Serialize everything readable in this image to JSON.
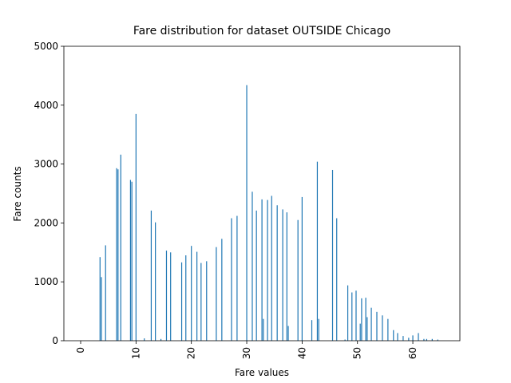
{
  "chart_data": {
    "type": "bar",
    "title": "Fare distribution for dataset OUTSIDE Chicago",
    "xlabel": "Fare values",
    "ylabel": "Fare counts",
    "color": "#1f77b4",
    "x": [
      3.5,
      3.75,
      4.5,
      6.5,
      6.75,
      7.25,
      9.0,
      9.25,
      10.0,
      11.5,
      12.75,
      13.5,
      14.5,
      15.5,
      16.25,
      18.25,
      19.0,
      20.0,
      21.0,
      21.75,
      22.75,
      24.5,
      25.5,
      27.25,
      28.25,
      30.0,
      31.0,
      31.75,
      32.75,
      33.0,
      33.75,
      34.5,
      35.5,
      36.5,
      37.25,
      37.5,
      39.25,
      40.0,
      41.75,
      42.75,
      43.0,
      45.5,
      46.25,
      47.75,
      48.25,
      49.0,
      49.75,
      50.5,
      50.75,
      51.5,
      51.75,
      52.5,
      53.5,
      54.5,
      55.5,
      56.5,
      57.25,
      58.25,
      59.25,
      60.0,
      61.0,
      62.0,
      62.5,
      63.5,
      64.5
    ],
    "values": [
      1420,
      1080,
      1620,
      2930,
      2910,
      3160,
      2730,
      2700,
      3850,
      40,
      2210,
      2010,
      30,
      1530,
      1500,
      1330,
      1450,
      1610,
      1510,
      1320,
      1350,
      1590,
      1730,
      2080,
      2120,
      4340,
      2530,
      2210,
      2400,
      370,
      2390,
      2460,
      2300,
      2230,
      2180,
      250,
      2050,
      2440,
      350,
      3040,
      370,
      2900,
      2080,
      20,
      940,
      820,
      850,
      290,
      720,
      730,
      400,
      560,
      490,
      430,
      370,
      180,
      130,
      80,
      50,
      90,
      130,
      30,
      30,
      30,
      20
    ],
    "xlim": [
      -3.03,
      68.5
    ],
    "ylim": [
      0,
      5000
    ],
    "xticks": [
      0,
      10,
      20,
      30,
      40,
      50,
      60
    ],
    "yticks": [
      0,
      1000,
      2000,
      3000,
      4000,
      5000
    ]
  }
}
